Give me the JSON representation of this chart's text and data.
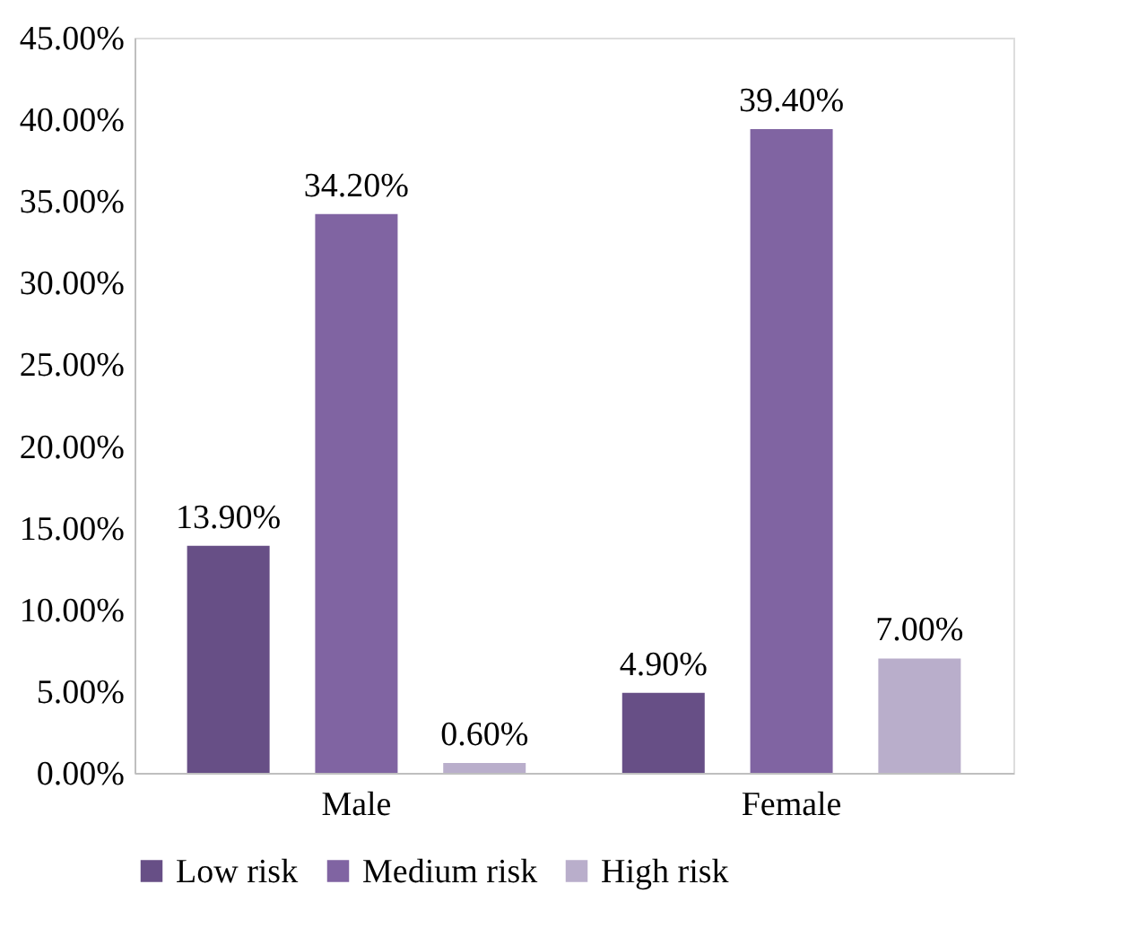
{
  "chart_data": {
    "type": "bar",
    "categories": [
      "Male",
      "Female"
    ],
    "series": [
      {
        "name": "Low risk",
        "color": "#674f86",
        "values": [
          13.9,
          4.9
        ],
        "value_labels": [
          "13.90%",
          "4.90%"
        ]
      },
      {
        "name": "Medium risk",
        "color": "#8064a2",
        "values": [
          34.2,
          39.4
        ],
        "value_labels": [
          "34.20%",
          "39.40%"
        ]
      },
      {
        "name": "High risk",
        "color": "#b9aecb",
        "values": [
          0.6,
          7.0
        ],
        "value_labels": [
          "0.60%",
          "7.00%"
        ]
      }
    ],
    "ylim": [
      0,
      45
    ],
    "yticks": [
      {
        "value": 0,
        "label": "0.00%"
      },
      {
        "value": 5,
        "label": "5.00%"
      },
      {
        "value": 10,
        "label": "10.00%"
      },
      {
        "value": 15,
        "label": "15.00%"
      },
      {
        "value": 20,
        "label": "20.00%"
      },
      {
        "value": 25,
        "label": "25.00%"
      },
      {
        "value": 30,
        "label": "30.00%"
      },
      {
        "value": 35,
        "label": "35.00%"
      },
      {
        "value": 40,
        "label": "40.00%"
      },
      {
        "value": 45,
        "label": "45.00%"
      }
    ],
    "grid": false,
    "legend": "bottom"
  }
}
